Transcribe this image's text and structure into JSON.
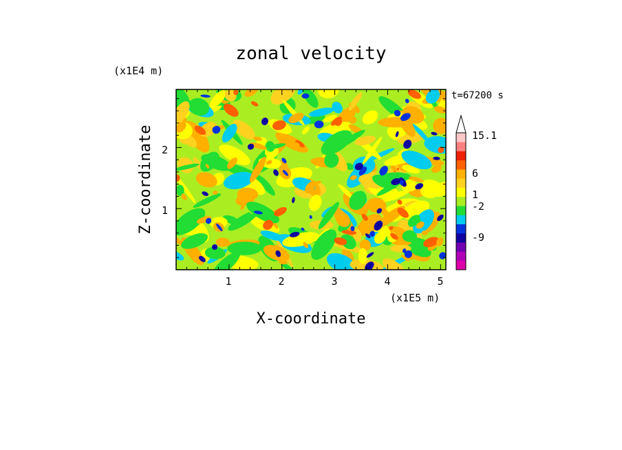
{
  "chart_data": {
    "type": "heatmap",
    "title": "zonal velocity",
    "xlabel": "X-coordinate",
    "ylabel": "Z-coordinate",
    "x_unit": "(x1E5 m)",
    "y_unit": "(x1E4 m)",
    "time_label": "t=67200 s",
    "xlim": [
      0,
      5.1
    ],
    "ylim": [
      0,
      2.95
    ],
    "x_ticks": [
      "1",
      "2",
      "3",
      "4",
      "5"
    ],
    "y_ticks": [
      "1",
      "2"
    ],
    "colorbar_labels": [
      "15.1",
      "6",
      "1",
      "-2",
      "-9"
    ],
    "colorbar_levels": [
      -15,
      -12,
      -9,
      -6,
      -4,
      -2,
      -1,
      0,
      1,
      2,
      4,
      6,
      9,
      12,
      15.1
    ],
    "colorbar_colors": [
      "#e000a8",
      "#b000b8",
      "#7000b0",
      "#1000a0",
      "#0033dd",
      "#00ccee",
      "#22dd33",
      "#aaee22",
      "#ffff00",
      "#ffd21f",
      "#ffb000",
      "#ff6000",
      "#ee2000",
      "#ff8080",
      "#ffc8c8"
    ]
  }
}
